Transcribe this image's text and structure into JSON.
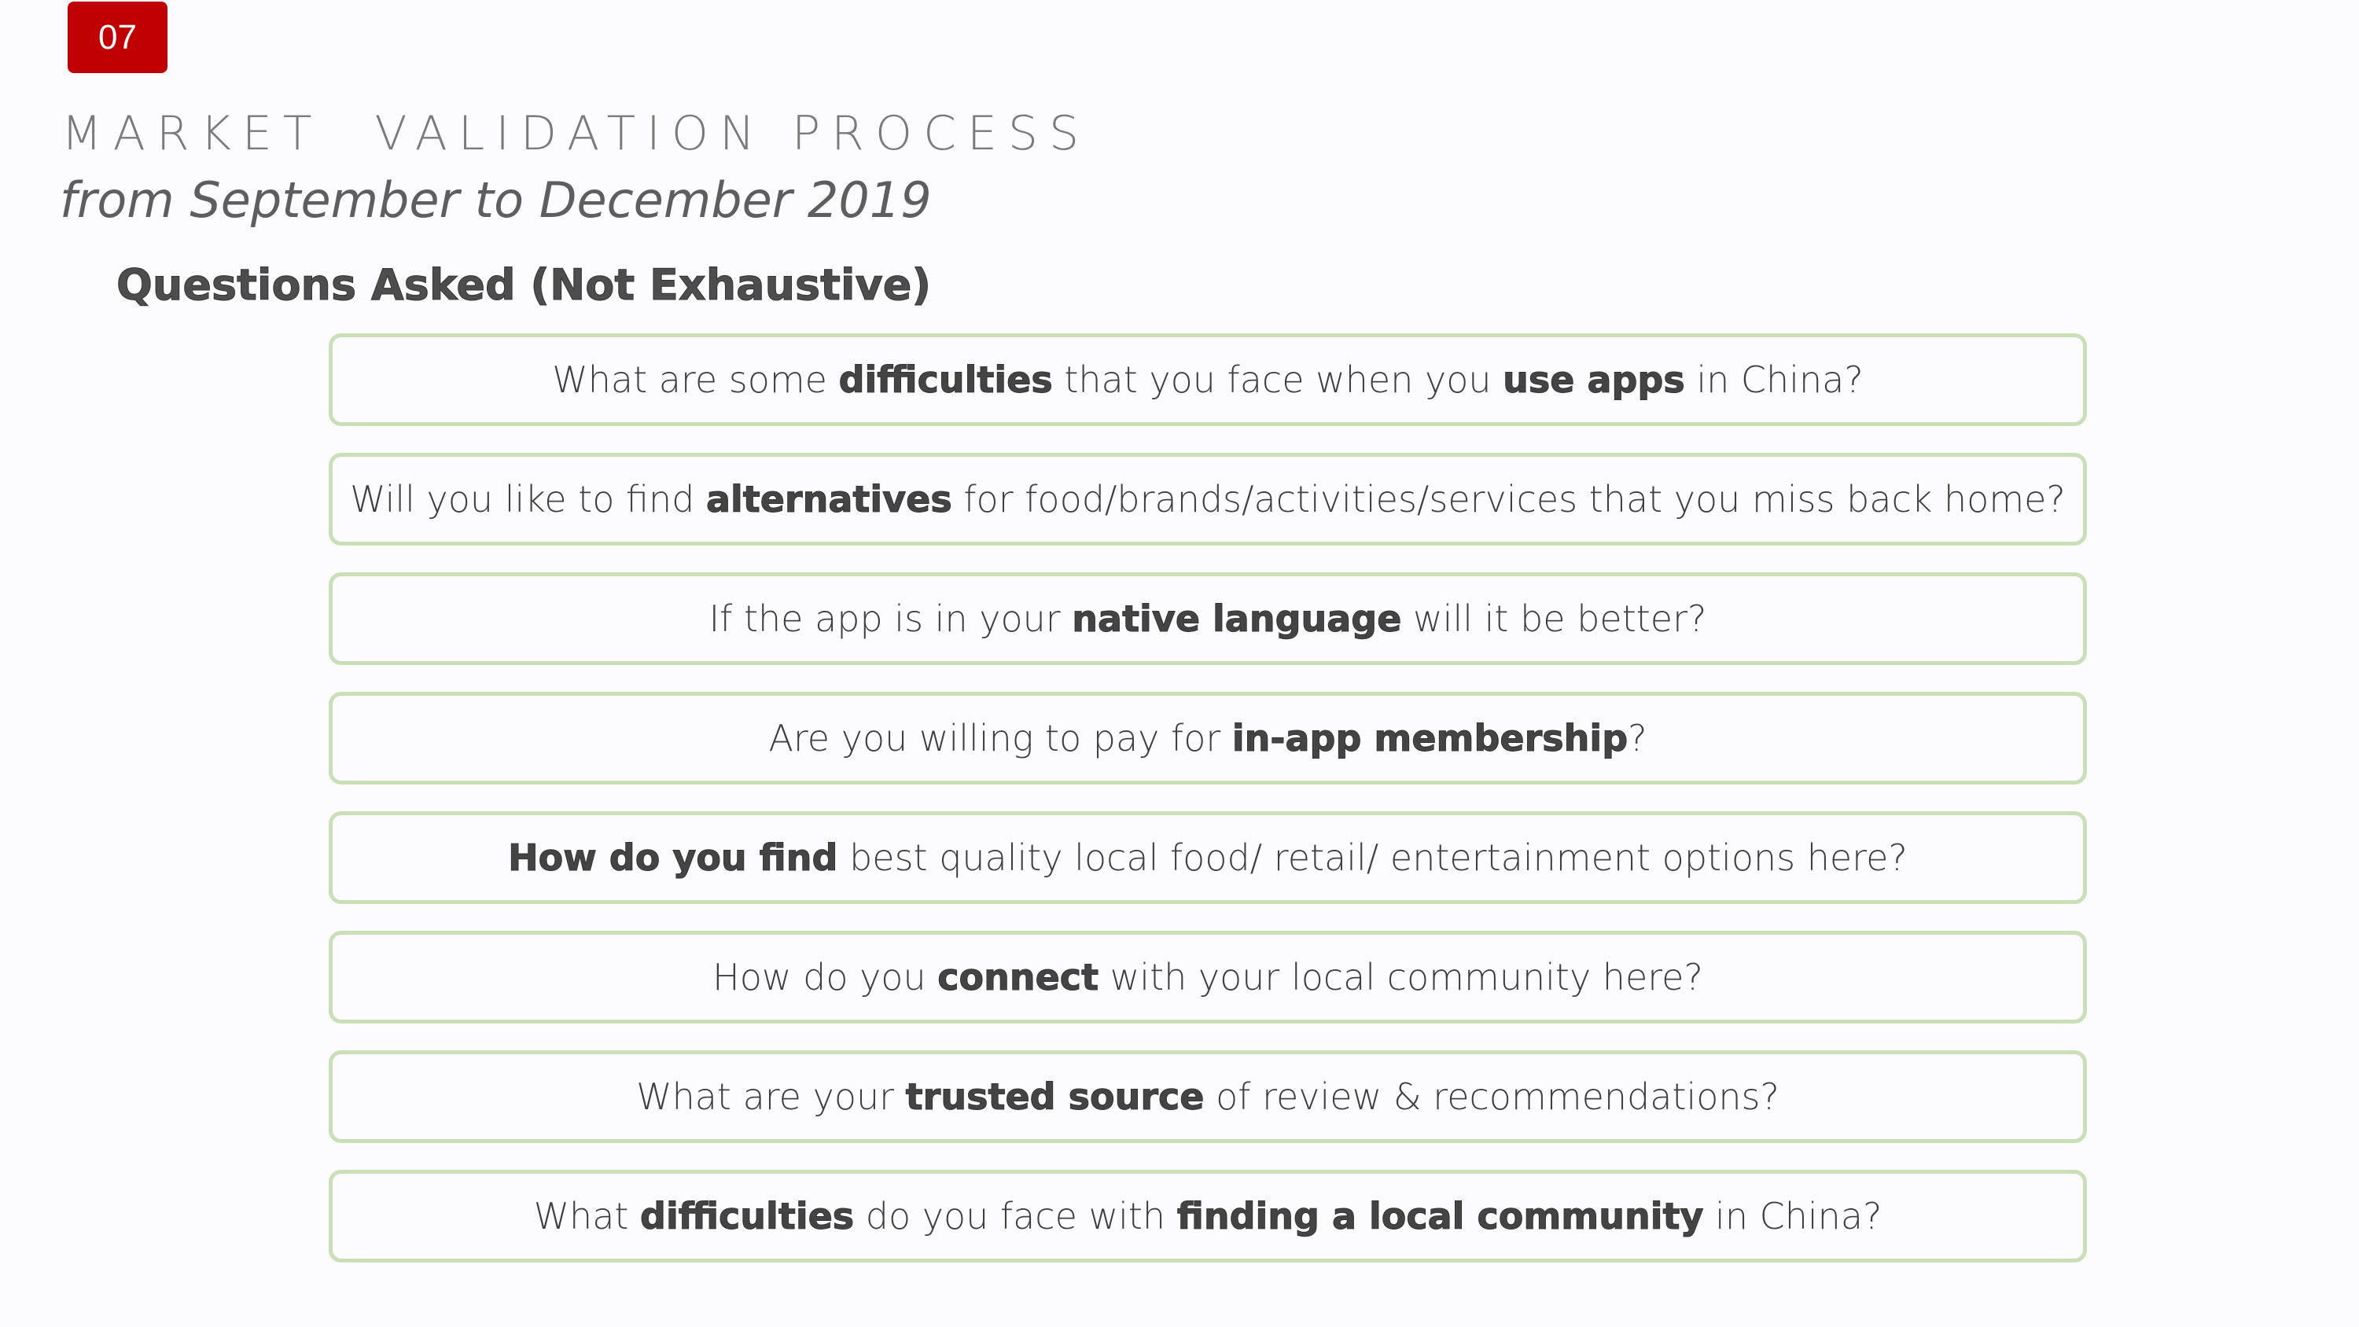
{
  "page_number": "07",
  "title": "MARKET  VALIDATION PROCESS",
  "subtitle": "from September to December 2019",
  "section_heading": "Questions Asked (Not Exhaustive)",
  "questions": [
    [
      {
        "t": "What are some ",
        "b": false
      },
      {
        "t": "difficulties",
        "b": true
      },
      {
        "t": " that you face when you ",
        "b": false
      },
      {
        "t": "use apps",
        "b": true
      },
      {
        "t": " in China?",
        "b": false
      }
    ],
    [
      {
        "t": "Will you like to find ",
        "b": false
      },
      {
        "t": "alternatives",
        "b": true
      },
      {
        "t": " for food/brands/activities/services that you miss back home?",
        "b": false
      }
    ],
    [
      {
        "t": "If the app is in your ",
        "b": false
      },
      {
        "t": "native language",
        "b": true
      },
      {
        "t": " will it be better?",
        "b": false
      }
    ],
    [
      {
        "t": "Are you willing to pay for ",
        "b": false
      },
      {
        "t": "in-app membership",
        "b": true
      },
      {
        "t": "?",
        "b": false
      }
    ],
    [
      {
        "t": "How do you find",
        "b": true
      },
      {
        "t": " best quality local food/ retail/ entertainment options here?",
        "b": false
      }
    ],
    [
      {
        "t": "How do you ",
        "b": false
      },
      {
        "t": "connect",
        "b": true
      },
      {
        "t": " with your local community here?",
        "b": false
      }
    ],
    [
      {
        "t": "What are your ",
        "b": false
      },
      {
        "t": "trusted source",
        "b": true
      },
      {
        "t": " of review & recommendations?",
        "b": false
      }
    ],
    [
      {
        "t": "What ",
        "b": false
      },
      {
        "t": "difficulties",
        "b": true
      },
      {
        "t": " do you face with ",
        "b": false
      },
      {
        "t": "finding a local community",
        "b": true
      },
      {
        "t": " in China?",
        "b": false
      }
    ]
  ]
}
